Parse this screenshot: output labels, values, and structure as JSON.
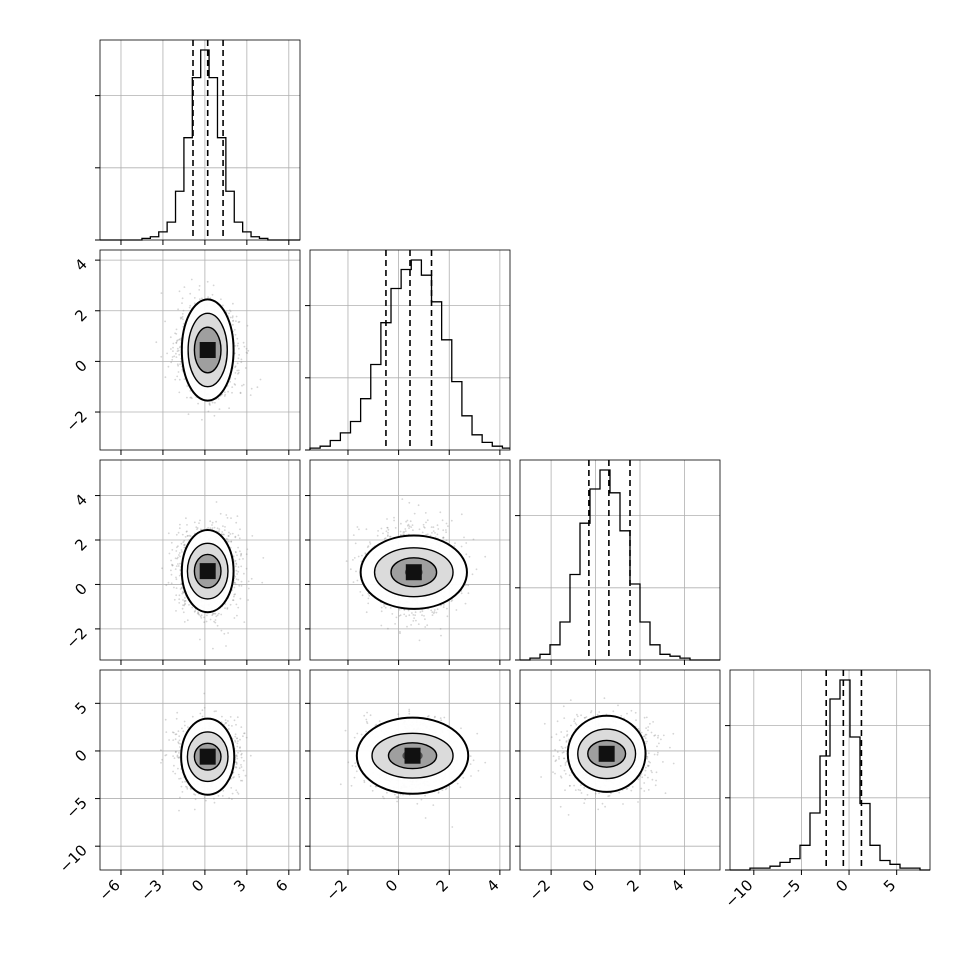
{
  "chart_data": {
    "type": "corner",
    "n_params": 4,
    "quantiles": [
      0.16,
      0.5,
      0.84
    ],
    "grid": true,
    "params": [
      {
        "range": [
          -7.5,
          6.8
        ],
        "mean": 0.2,
        "sigma": 1.05,
        "quantiles": [
          -0.85,
          0.2,
          1.3
        ],
        "ticks": [
          -6,
          -3,
          0,
          3,
          6
        ],
        "tick_labels": [
          "−6",
          "−3",
          "0",
          "3",
          "6"
        ]
      },
      {
        "range": [
          -3.5,
          4.4
        ],
        "mean": 0.45,
        "sigma": 0.85,
        "quantiles": [
          -0.5,
          0.45,
          1.3
        ],
        "ticks": [
          -2,
          0,
          2,
          4
        ],
        "tick_labels": [
          "−2",
          "0",
          "2",
          "4"
        ]
      },
      {
        "range": [
          -3.4,
          5.6
        ],
        "mean": 0.6,
        "sigma": 0.95,
        "quantiles": [
          -0.3,
          0.6,
          1.55
        ],
        "ticks": [
          -2,
          0,
          2,
          4
        ],
        "tick_labels": [
          "−2",
          "0",
          "2",
          "4"
        ]
      },
      {
        "range": [
          -12.5,
          8.5
        ],
        "mean": -0.6,
        "sigma": 1.8,
        "quantiles": [
          -2.4,
          -0.6,
          1.3
        ],
        "ticks": [
          -10,
          -5,
          0,
          5
        ],
        "tick_labels": [
          "−10",
          "−5",
          "0",
          "5"
        ]
      }
    ],
    "histograms": [
      {
        "param": 0,
        "bins": [
          -7.5,
          -6.9,
          -6.3,
          -5.7,
          -5.1,
          -4.5,
          -3.9,
          -3.3,
          -2.7,
          -2.1,
          -1.5,
          -0.9,
          -0.3,
          0.3,
          0.9,
          1.5,
          2.1,
          2.7,
          3.3,
          3.9,
          4.5,
          5.1,
          5.7,
          6.3,
          6.8
        ],
        "counts": [
          0,
          0,
          0,
          0,
          0,
          1,
          2,
          5,
          11,
          30,
          63,
          100,
          117,
          100,
          63,
          30,
          11,
          5,
          2,
          1,
          0,
          0,
          0,
          0
        ]
      },
      {
        "param": 1,
        "bins": [
          -3.5,
          -3.1,
          -2.7,
          -2.3,
          -1.9,
          -1.5,
          -1.1,
          -0.7,
          -0.3,
          0.1,
          0.5,
          0.9,
          1.3,
          1.7,
          2.1,
          2.5,
          2.9,
          3.3,
          3.7,
          4.1,
          4.4
        ],
        "counts": [
          1,
          2,
          5,
          9,
          15,
          27,
          45,
          67,
          85,
          95,
          100,
          92,
          78,
          58,
          36,
          18,
          8,
          4,
          2,
          1
        ]
      },
      {
        "param": 2,
        "bins": [
          -3.4,
          -2.95,
          -2.5,
          -2.05,
          -1.6,
          -1.15,
          -0.7,
          -0.25,
          0.2,
          0.65,
          1.1,
          1.55,
          2.0,
          2.45,
          2.9,
          3.35,
          3.8,
          4.25,
          4.7,
          5.15,
          5.6
        ],
        "counts": [
          0,
          1,
          3,
          8,
          20,
          45,
          72,
          90,
          100,
          88,
          68,
          40,
          20,
          8,
          3,
          2,
          1,
          0,
          0,
          0
        ]
      },
      {
        "param": 3,
        "bins": [
          -12.5,
          -11.45,
          -10.4,
          -9.35,
          -8.3,
          -7.25,
          -6.2,
          -5.15,
          -4.1,
          -3.05,
          -2.0,
          -0.95,
          0.1,
          1.15,
          2.2,
          3.25,
          4.3,
          5.35,
          6.4,
          7.45,
          8.5
        ],
        "counts": [
          0,
          0,
          1,
          1,
          2,
          4,
          6,
          13,
          30,
          60,
          90,
          100,
          70,
          35,
          13,
          5,
          3,
          1,
          1,
          0
        ]
      }
    ],
    "pairs": [
      {
        "x": 0,
        "y": 1,
        "center": [
          0.2,
          0.45
        ],
        "contour_halfwidths": [
          [
            0.4,
            0.3
          ],
          [
            0.95,
            0.9
          ],
          [
            1.4,
            1.45
          ],
          [
            1.85,
            2.0
          ]
        ]
      },
      {
        "x": 0,
        "y": 2,
        "center": [
          0.2,
          0.6
        ],
        "contour_halfwidths": [
          [
            0.4,
            0.3
          ],
          [
            0.95,
            0.75
          ],
          [
            1.45,
            1.25
          ],
          [
            1.85,
            1.85
          ]
        ]
      },
      {
        "x": 1,
        "y": 2,
        "center": [
          0.6,
          0.55
        ],
        "contour_halfwidths": [
          [
            0.35,
            0.25
          ],
          [
            0.9,
            0.65
          ],
          [
            1.55,
            1.1
          ],
          [
            2.1,
            1.65
          ]
        ]
      },
      {
        "x": 0,
        "y": 3,
        "center": [
          0.2,
          -0.6
        ],
        "contour_halfwidths": [
          [
            0.35,
            0.5
          ],
          [
            0.95,
            1.4
          ],
          [
            1.45,
            2.6
          ],
          [
            1.9,
            4.0
          ]
        ]
      },
      {
        "x": 1,
        "y": 3,
        "center": [
          0.55,
          -0.5
        ],
        "contour_halfwidths": [
          [
            0.4,
            0.6
          ],
          [
            0.95,
            1.35
          ],
          [
            1.6,
            2.35
          ],
          [
            2.2,
            4.0
          ]
        ]
      },
      {
        "x": 2,
        "y": 3,
        "center": [
          0.5,
          -0.3
        ],
        "contour_halfwidths": [
          [
            0.35,
            0.5
          ],
          [
            0.85,
            1.4
          ],
          [
            1.3,
            2.6
          ],
          [
            1.75,
            4.0
          ]
        ]
      }
    ]
  }
}
